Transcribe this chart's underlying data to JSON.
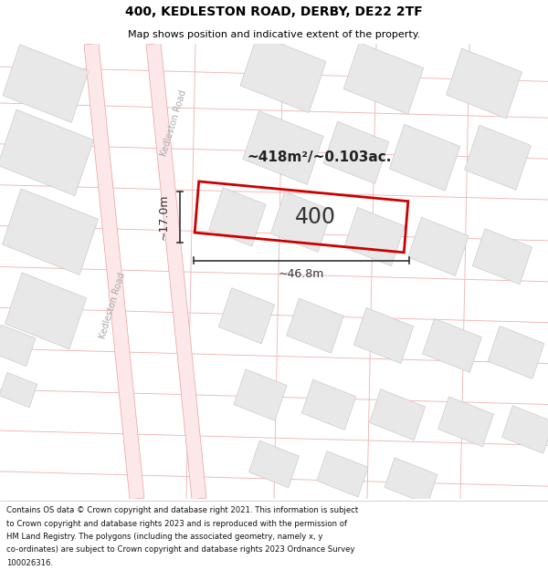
{
  "title_line1": "400, KEDLESTON ROAD, DERBY, DE22 2TF",
  "title_line2": "Map shows position and indicative extent of the property.",
  "footer_lines": [
    "Contains OS data © Crown copyright and database right 2021. This information is subject",
    "to Crown copyright and database rights 2023 and is reproduced with the permission of",
    "HM Land Registry. The polygons (including the associated geometry, namely x, y",
    "co-ordinates) are subject to Crown copyright and database rights 2023 Ordnance Survey",
    "100026316."
  ],
  "map_bg": "#ffffff",
  "road_fill": "#fce8e8",
  "road_edge": "#e8a0a0",
  "road_line": "#e8a0a0",
  "building_fill": "#e8e8e8",
  "building_edge": "#cccccc",
  "plot_edge": "#cc0000",
  "road_label_color": "#aaaaaa",
  "dim_color": "#333333",
  "label_400": "400",
  "area_label": "~418m²/~0.103ac.",
  "dim_width": "~46.8m",
  "dim_height": "~17.0m",
  "road_label": "Kedleston Road"
}
